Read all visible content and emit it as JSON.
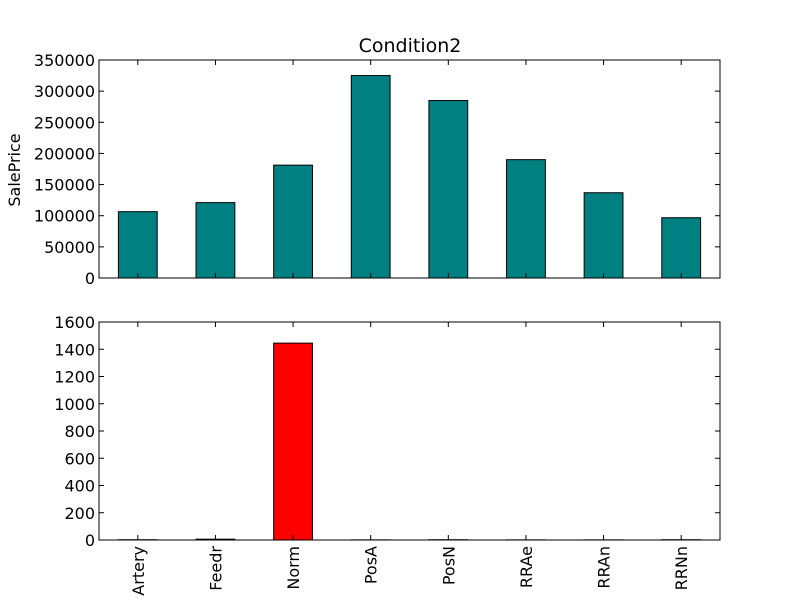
{
  "chart_data": [
    {
      "type": "bar",
      "title": "Condition2",
      "xlabel": "",
      "ylabel": "SalePrice",
      "ylim": [
        0,
        350000
      ],
      "yticks": [
        0,
        50000,
        100000,
        150000,
        200000,
        250000,
        300000,
        350000
      ],
      "categories": [
        "Artery",
        "Feedr",
        "Norm",
        "PosA",
        "PosN",
        "RRAe",
        "RRAn",
        "RRNn"
      ],
      "values": [
        106500,
        121000,
        181200,
        325000,
        284900,
        190000,
        136900,
        96750
      ],
      "bar_color": "#008080",
      "show_xtick_labels": false
    },
    {
      "type": "bar",
      "title": "",
      "xlabel": "",
      "ylabel": "",
      "ylim": [
        0,
        1600
      ],
      "yticks": [
        0,
        200,
        400,
        600,
        800,
        1000,
        1200,
        1400,
        1600
      ],
      "categories": [
        "Artery",
        "Feedr",
        "Norm",
        "PosA",
        "PosN",
        "RRAe",
        "RRAn",
        "RRNn"
      ],
      "values": [
        2,
        6,
        1445,
        1,
        2,
        1,
        1,
        2
      ],
      "bar_color": "#ff0000",
      "show_xtick_labels": true
    }
  ]
}
